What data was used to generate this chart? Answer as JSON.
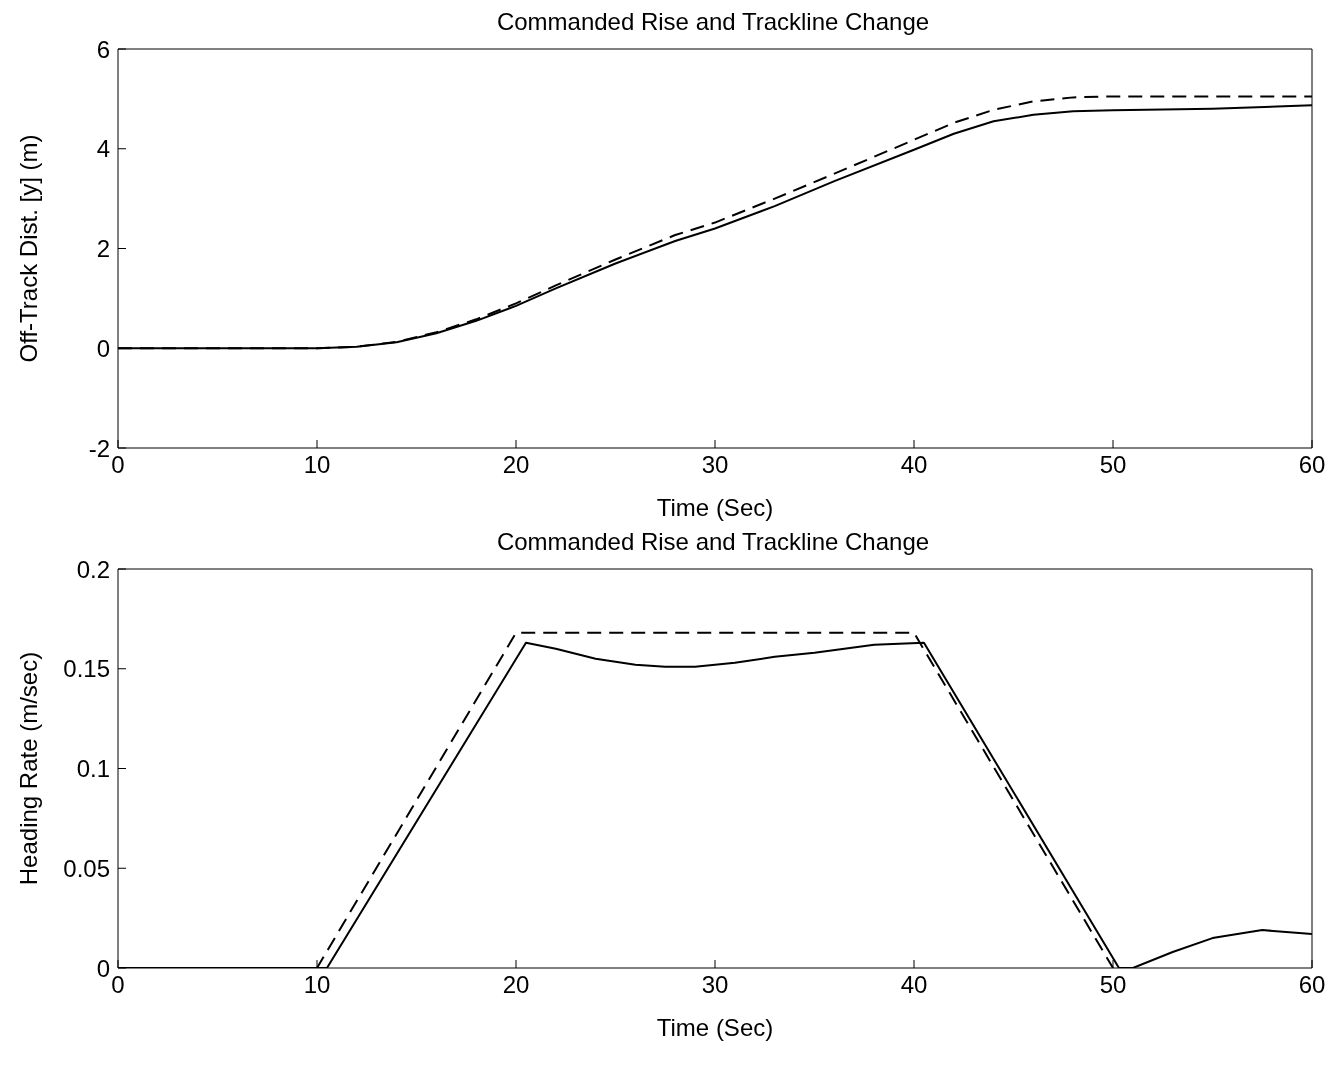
{
  "chart_data": [
    {
      "type": "line",
      "title": "Commanded Rise and Trackline Change",
      "xlabel": "Time (Sec)",
      "ylabel": "Off-Track Dist. [y] (m)",
      "xlim": [
        0,
        60
      ],
      "xticks": [
        0,
        10,
        20,
        30,
        40,
        50,
        60
      ],
      "ylim": [
        -2,
        6
      ],
      "yticks": [
        -2,
        0,
        2,
        4,
        6
      ],
      "grid": false,
      "legend": false,
      "series": [
        {
          "color": "#000000",
          "line_style": "solid",
          "x": [
            0,
            10,
            12,
            14,
            16,
            18,
            20,
            22,
            25,
            28,
            30,
            33,
            36,
            40,
            42,
            44,
            46,
            48,
            50,
            55,
            60
          ],
          "values": [
            0,
            0,
            0.03,
            0.12,
            0.3,
            0.55,
            0.85,
            1.2,
            1.7,
            2.15,
            2.4,
            2.85,
            3.35,
            3.98,
            4.3,
            4.55,
            4.68,
            4.75,
            4.77,
            4.8,
            4.87
          ]
        },
        {
          "color": "#000000",
          "line_style": "dashed",
          "x": [
            0,
            10,
            12,
            14,
            16,
            18,
            20,
            22,
            25,
            28,
            30,
            33,
            36,
            40,
            42,
            44,
            46,
            48,
            50,
            55,
            60
          ],
          "values": [
            0,
            0,
            0.03,
            0.13,
            0.32,
            0.58,
            0.9,
            1.26,
            1.78,
            2.27,
            2.52,
            3,
            3.5,
            4.18,
            4.52,
            4.78,
            4.95,
            5.03,
            5.05,
            5.05,
            5.05
          ]
        }
      ]
    },
    {
      "type": "line",
      "title": "Commanded Rise and Trackline Change",
      "xlabel": "Time (Sec)",
      "ylabel": "Heading Rate (m/sec)",
      "xlim": [
        0,
        60
      ],
      "xticks": [
        0,
        10,
        20,
        30,
        40,
        50,
        60
      ],
      "ylim": [
        0,
        0.2
      ],
      "yticks": [
        0,
        0.05,
        0.1,
        0.15,
        0.2
      ],
      "grid": false,
      "legend": false,
      "series": [
        {
          "color": "#000000",
          "line_style": "solid",
          "x": [
            0,
            10.5,
            20.5,
            22,
            24,
            26,
            27.5,
            29,
            31,
            33,
            35,
            38,
            40.5,
            50.3,
            51,
            53,
            55,
            57.5,
            60
          ],
          "values": [
            0,
            0,
            0.163,
            0.16,
            0.155,
            0.152,
            0.151,
            0.151,
            0.153,
            0.156,
            0.158,
            0.162,
            0.163,
            0,
            0,
            0.008,
            0.015,
            0.019,
            0.017
          ]
        },
        {
          "color": "#000000",
          "line_style": "dashed",
          "x": [
            0,
            10,
            20,
            40,
            50
          ],
          "values": [
            0,
            0,
            0.168,
            0.168,
            0
          ]
        }
      ]
    }
  ]
}
